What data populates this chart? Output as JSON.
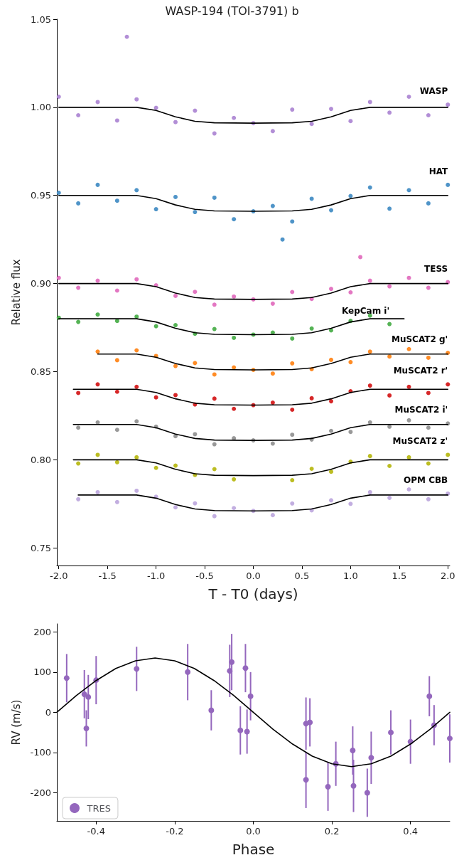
{
  "chart_data": [
    {
      "type": "scatter",
      "title": "WASP-194 (TOI-3791) b",
      "xlabel": "T - T0 (days)",
      "ylabel": "Relative flux",
      "xlim": [
        -2.02,
        2.02
      ],
      "ylim": [
        0.74,
        1.05
      ],
      "xticks": [
        {
          "value": -2,
          "label": "-2.0"
        },
        -1.5,
        {
          "value": -1,
          "label": "-1.0"
        },
        -0.5,
        {
          "value": 0,
          "label": "0.0"
        },
        0.5,
        {
          "value": 1,
          "label": "1.0"
        },
        1.5,
        {
          "value": 2,
          "label": "2.0"
        }
      ],
      "yticks": [
        0.75,
        {
          "value": 0.8,
          "label": "0.80"
        },
        0.85,
        {
          "value": 0.9,
          "label": "0.90"
        },
        0.95,
        {
          "value": 1,
          "label": "1.00"
        },
        1.05
      ],
      "grid": false,
      "legend": false,
      "marker": "circle",
      "series": [
        {
          "name": "WASP",
          "color": "#b28ed6",
          "x": [
            -2,
            -1.8,
            -1.6,
            -1.4,
            -1.3,
            -1.2,
            -1,
            -0.8,
            -0.6,
            -0.4,
            -0.2,
            0,
            0.2,
            0.4,
            0.6,
            0.8,
            1,
            1.2,
            1.4,
            1.6,
            1.8,
            2
          ],
          "values": [
            1.006,
            0.9955,
            1.003,
            0.9925,
            1.04,
            1.0045,
            0.9997,
            0.9916,
            0.9981,
            0.9852,
            0.994,
            0.991,
            0.9865,
            0.9987,
            0.9906,
            0.9991,
            0.9922,
            1.003,
            0.997,
            1.006,
            0.9955,
            1.0015
          ]
        },
        {
          "name": "HAT",
          "color": "#4f94c8",
          "x": [
            -2,
            -1.8,
            -1.6,
            -1.4,
            -1.2,
            -1,
            -0.8,
            -0.6,
            -0.4,
            -0.2,
            0,
            0.2,
            0.3,
            0.4,
            0.6,
            0.8,
            1,
            1.2,
            1.4,
            1.6,
            1.8,
            2
          ],
          "values": [
            0.9515,
            0.9455,
            0.956,
            0.947,
            0.953,
            0.9422,
            0.9491,
            0.9406,
            0.9487,
            0.9365,
            0.941,
            0.944,
            0.925,
            0.9352,
            0.9481,
            0.9416,
            0.9497,
            0.9545,
            0.9425,
            0.953,
            0.9455,
            0.956
          ]
        },
        {
          "name": "TESS",
          "color": "#e377c2",
          "x": [
            -2,
            -1.8,
            -1.6,
            -1.4,
            -1.2,
            -1,
            -0.8,
            -0.6,
            -0.4,
            -0.2,
            0,
            0.2,
            0.4,
            0.6,
            0.8,
            1,
            1.1,
            1.2,
            1.4,
            1.6,
            1.8,
            2
          ],
          "values": [
            0.9032,
            0.8976,
            0.9016,
            0.896,
            0.9024,
            0.899,
            0.893,
            0.8953,
            0.888,
            0.8926,
            0.891,
            0.8886,
            0.8952,
            0.8913,
            0.897,
            0.895,
            0.915,
            0.9016,
            0.8984,
            0.9032,
            0.8976,
            0.9008
          ]
        },
        {
          "name": "KepCam i'",
          "color": "#55b355",
          "x": [
            -2,
            -1.8,
            -1.6,
            -1.4,
            -1.2,
            -1,
            -0.8,
            -0.6,
            -0.4,
            -0.2,
            0,
            0.2,
            0.4,
            0.6,
            0.8,
            1,
            1.2,
            1.4
          ],
          "values": [
            0.8806,
            0.8782,
            0.8824,
            0.8788,
            0.8812,
            0.8758,
            0.8764,
            0.8715,
            0.8742,
            0.8692,
            0.871,
            0.8722,
            0.8688,
            0.8745,
            0.8734,
            0.8788,
            0.8818,
            0.877
          ]
        },
        {
          "name": "MuSCAT2 g'",
          "color": "#ff8c26",
          "x": [
            -1.6,
            -1.4,
            -1.2,
            -1,
            -0.8,
            -0.6,
            -0.4,
            -0.2,
            0,
            0.2,
            0.4,
            0.6,
            0.8,
            1,
            1.2,
            1.4,
            1.6,
            1.8,
            2
          ],
          "values": [
            0.8614,
            0.8565,
            0.8621,
            0.8589,
            0.8532,
            0.8549,
            0.8484,
            0.8524,
            0.851,
            0.8489,
            0.8547,
            0.8514,
            0.8567,
            0.8554,
            0.8614,
            0.8586,
            0.8628,
            0.8579,
            0.8607
          ]
        },
        {
          "name": "MuSCAT2 r'",
          "color": "#d62728",
          "x": [
            -1.8,
            -1.6,
            -1.4,
            -1.2,
            -1,
            -0.8,
            -0.6,
            -0.4,
            -0.2,
            0,
            0.2,
            0.4,
            0.6,
            0.8,
            1,
            1.2,
            1.4,
            1.6,
            1.8,
            2
          ],
          "values": [
            0.8379,
            0.8428,
            0.8386,
            0.8414,
            0.8354,
            0.8367,
            0.8314,
            0.8347,
            0.8289,
            0.831,
            0.8324,
            0.8284,
            0.8349,
            0.8332,
            0.8389,
            0.8421,
            0.8365,
            0.8414,
            0.8379,
            0.8428
          ]
        },
        {
          "name": "MuSCAT2 i'",
          "color": "#999999",
          "x": [
            -1.8,
            -1.6,
            -1.4,
            -1.2,
            -1,
            -0.8,
            -0.6,
            -0.4,
            -0.2,
            0,
            0.2,
            0.4,
            0.6,
            0.8,
            1,
            1.2,
            1.4,
            1.6,
            1.8,
            2
          ],
          "values": [
            0.8182,
            0.8212,
            0.817,
            0.8218,
            0.8188,
            0.8134,
            0.8145,
            0.8088,
            0.8122,
            0.811,
            0.8092,
            0.8142,
            0.8115,
            0.8164,
            0.8158,
            0.8212,
            0.8188,
            0.8224,
            0.8182,
            0.8206
          ]
        },
        {
          "name": "MuSCAT2 z'",
          "color": "#bcbd22",
          "x": [
            -1.8,
            -1.6,
            -1.4,
            -1.2,
            -1,
            -0.8,
            -0.6,
            -0.4,
            -0.2,
            0.4,
            0.6,
            0.8,
            1,
            1.2,
            1.4,
            1.6,
            1.8,
            2
          ],
          "values": [
            0.7979,
            0.8028,
            0.7986,
            0.8014,
            0.7954,
            0.7967,
            0.7914,
            0.7947,
            0.7889,
            0.7884,
            0.7949,
            0.7932,
            0.7989,
            0.8021,
            0.7965,
            0.8014,
            0.7979,
            0.8028
          ]
        },
        {
          "name": "OPM CBB",
          "color": "#c2aee0",
          "x": [
            -1.8,
            -1.6,
            -1.4,
            -1.2,
            -1,
            -0.8,
            -0.6,
            -0.4,
            -0.2,
            0,
            0.2,
            0.4,
            0.6,
            0.8,
            1,
            1.2,
            1.4,
            1.6,
            1.8,
            2
          ],
          "values": [
            0.7776,
            0.7816,
            0.776,
            0.7824,
            0.779,
            0.773,
            0.7753,
            0.768,
            0.7726,
            0.771,
            0.7686,
            0.7752,
            0.7713,
            0.777,
            0.775,
            0.7816,
            0.7784,
            0.7832,
            0.7776,
            0.7808
          ]
        },
        {
          "type": "line",
          "marker": "none",
          "color": "#000000",
          "x": [
            -2,
            -1.2,
            -1,
            -0.8,
            -0.6,
            -0.4,
            0,
            0.4,
            0.6,
            0.8,
            1,
            1.2,
            2
          ],
          "values": [
            1,
            1,
            0.9982,
            0.9946,
            0.9921,
            0.9912,
            0.991,
            0.9912,
            0.9921,
            0.9946,
            0.9982,
            1,
            1
          ]
        },
        {
          "type": "line",
          "marker": "none",
          "color": "#000000",
          "x": [
            -2,
            -1.2,
            -1,
            -0.8,
            -0.6,
            -0.4,
            0,
            0.4,
            0.6,
            0.8,
            1,
            1.2,
            2
          ],
          "values": [
            0.95,
            0.95,
            0.9482,
            0.9446,
            0.9421,
            0.9412,
            0.941,
            0.9412,
            0.9421,
            0.9446,
            0.9482,
            0.95,
            0.95
          ]
        },
        {
          "type": "line",
          "marker": "none",
          "color": "#000000",
          "x": [
            -2,
            -1.2,
            -1,
            -0.8,
            -0.6,
            -0.4,
            0,
            0.4,
            0.6,
            0.8,
            1,
            1.2,
            2
          ],
          "values": [
            0.9,
            0.9,
            0.8982,
            0.8946,
            0.8921,
            0.8912,
            0.891,
            0.8912,
            0.8921,
            0.8946,
            0.8982,
            0.9,
            0.9
          ]
        },
        {
          "type": "line",
          "marker": "none",
          "color": "#000000",
          "x": [
            -2,
            -1.2,
            -1,
            -0.8,
            -0.6,
            -0.4,
            0,
            0.4,
            0.6,
            0.8,
            1,
            1.2,
            1.55
          ],
          "values": [
            0.88,
            0.88,
            0.8782,
            0.8746,
            0.8721,
            0.8712,
            0.871,
            0.8712,
            0.8721,
            0.8746,
            0.8782,
            0.88,
            0.88
          ]
        },
        {
          "type": "line",
          "marker": "none",
          "color": "#000000",
          "x": [
            -1.6,
            -1.2,
            -1,
            -0.8,
            -0.6,
            -0.4,
            0,
            0.4,
            0.6,
            0.8,
            1,
            1.2,
            2
          ],
          "values": [
            0.86,
            0.86,
            0.8582,
            0.8546,
            0.8521,
            0.8512,
            0.851,
            0.8512,
            0.8521,
            0.8546,
            0.8582,
            0.86,
            0.86
          ]
        },
        {
          "type": "line",
          "marker": "none",
          "color": "#000000",
          "x": [
            -1.85,
            -1.2,
            -1,
            -0.8,
            -0.6,
            -0.4,
            0,
            0.4,
            0.6,
            0.8,
            1,
            1.2,
            2
          ],
          "values": [
            0.84,
            0.84,
            0.8382,
            0.8346,
            0.8321,
            0.8312,
            0.831,
            0.8312,
            0.8321,
            0.8346,
            0.8382,
            0.84,
            0.84
          ]
        },
        {
          "type": "line",
          "marker": "none",
          "color": "#000000",
          "x": [
            -1.85,
            -1.2,
            -1,
            -0.8,
            -0.6,
            -0.4,
            0,
            0.4,
            0.6,
            0.8,
            1,
            1.2,
            2
          ],
          "values": [
            0.82,
            0.82,
            0.8182,
            0.8146,
            0.8121,
            0.8112,
            0.811,
            0.8112,
            0.8121,
            0.8146,
            0.8182,
            0.82,
            0.82
          ]
        },
        {
          "type": "line",
          "marker": "none",
          "color": "#000000",
          "x": [
            -1.85,
            -1.2,
            -1,
            -0.8,
            -0.6,
            -0.4,
            0,
            0.4,
            0.6,
            0.8,
            1,
            1.2,
            2
          ],
          "values": [
            0.8,
            0.8,
            0.7982,
            0.7946,
            0.7921,
            0.7912,
            0.791,
            0.7912,
            0.7921,
            0.7946,
            0.7982,
            0.8,
            0.8
          ]
        },
        {
          "type": "line",
          "marker": "none",
          "color": "#000000",
          "x": [
            -1.8,
            -1.2,
            -1,
            -0.8,
            -0.6,
            -0.4,
            0,
            0.4,
            0.6,
            0.8,
            1,
            1.2,
            2
          ],
          "values": [
            0.78,
            0.78,
            0.7782,
            0.7746,
            0.7721,
            0.7712,
            0.771,
            0.7712,
            0.7721,
            0.7746,
            0.7782,
            0.78,
            0.78
          ]
        }
      ]
    },
    {
      "type": "scatter",
      "xlabel": "Phase",
      "ylabel": "RV (m/s)",
      "xlim": [
        -0.5,
        0.5
      ],
      "ylim": [
        -270,
        220
      ],
      "xticks": [
        -0.4,
        -0.2,
        {
          "value": 0,
          "label": "0.0"
        },
        0.2,
        0.4
      ],
      "yticks": [
        -200,
        -100,
        0,
        100,
        200
      ],
      "grid": false,
      "legend": "bottom left",
      "marker": "circle",
      "series": [
        {
          "name": "TRES",
          "color": "#9467bd",
          "x": [
            -0.475,
            -0.43,
            -0.42,
            -0.425,
            -0.4,
            -0.297,
            -0.167,
            -0.107,
            -0.06,
            -0.055,
            -0.033,
            -0.02,
            -0.016,
            -0.007,
            0.134,
            0.144,
            0.134,
            0.19,
            0.21,
            0.253,
            0.255,
            0.29,
            0.3,
            0.35,
            0.4,
            0.448,
            0.46,
            0.5
          ],
          "values": [
            85,
            45,
            38,
            -40,
            80,
            108,
            100,
            5,
            103,
            125,
            -45,
            110,
            -48,
            40,
            -28,
            -25,
            -168,
            -185,
            -128,
            -95,
            -183,
            -200,
            -113,
            -50,
            -73,
            40,
            -32,
            -65
          ],
          "errors": [
            60,
            60,
            55,
            45,
            60,
            55,
            70,
            50,
            65,
            70,
            60,
            60,
            55,
            60,
            65,
            60,
            70,
            60,
            55,
            60,
            65,
            60,
            65,
            55,
            55,
            50,
            50,
            60
          ]
        },
        {
          "type": "line",
          "marker": "none",
          "color": "#000000",
          "x": [
            -0.5,
            -0.45,
            -0.4,
            -0.35,
            -0.3,
            -0.25,
            -0.2,
            -0.15,
            -0.1,
            -0.05,
            0,
            0.05,
            0.1,
            0.15,
            0.2,
            0.25,
            0.3,
            0.35,
            0.4,
            0.45,
            0.5
          ],
          "values": [
            0,
            42,
            79,
            109,
            128,
            135,
            128,
            109,
            79,
            42,
            0,
            -42,
            -79,
            -109,
            -128,
            -135,
            -128,
            -109,
            -79,
            -42,
            0
          ]
        }
      ]
    }
  ]
}
